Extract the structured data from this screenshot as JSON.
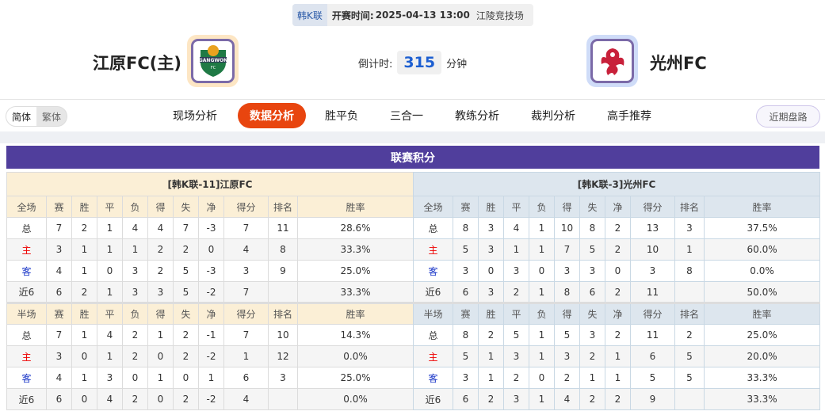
{
  "match": {
    "league": "韩K联",
    "time_label": "开赛时间:",
    "time": "2025-04-13 13:00",
    "venue": "江陵竞技场"
  },
  "home": {
    "name": "江原FC(主)",
    "logo_text": "GANGWON FC"
  },
  "away": {
    "name": "光州FC"
  },
  "countdown": {
    "label": "倒计时:",
    "value": "315",
    "unit": "分钟"
  },
  "lang": {
    "simplified": "简体",
    "traditional": "繁体"
  },
  "nav": [
    "现场分析",
    "数据分析",
    "胜平负",
    "三合一",
    "教练分析",
    "裁判分析",
    "高手推荐"
  ],
  "nav_active": 1,
  "recent_button": "近期盘路",
  "section_title": "联赛积分",
  "colors": {
    "accent": "#e8450f",
    "header": "#503e9c",
    "home_label": "#e00000",
    "away_label": "#1a36c8"
  },
  "columns_full": [
    "全场",
    "赛",
    "胜",
    "平",
    "负",
    "得",
    "失",
    "净",
    "得分",
    "排名",
    "胜率"
  ],
  "columns_half": [
    "半场",
    "赛",
    "胜",
    "平",
    "负",
    "得",
    "失",
    "净",
    "得分",
    "排名",
    "胜率"
  ],
  "tables": [
    {
      "title": "[韩K联-11]江原FC",
      "full": [
        [
          "总",
          "7",
          "2",
          "1",
          "4",
          "4",
          "7",
          "-3",
          "7",
          "11",
          "28.6%"
        ],
        [
          "主",
          "3",
          "1",
          "1",
          "1",
          "2",
          "2",
          "0",
          "4",
          "8",
          "33.3%"
        ],
        [
          "客",
          "4",
          "1",
          "0",
          "3",
          "2",
          "5",
          "-3",
          "3",
          "9",
          "25.0%"
        ],
        [
          "近6",
          "6",
          "2",
          "1",
          "3",
          "3",
          "5",
          "-2",
          "7",
          "",
          "33.3%"
        ]
      ],
      "half": [
        [
          "总",
          "7",
          "1",
          "4",
          "2",
          "1",
          "2",
          "-1",
          "7",
          "10",
          "14.3%"
        ],
        [
          "主",
          "3",
          "0",
          "1",
          "2",
          "0",
          "2",
          "-2",
          "1",
          "12",
          "0.0%"
        ],
        [
          "客",
          "4",
          "1",
          "3",
          "0",
          "1",
          "0",
          "1",
          "6",
          "3",
          "25.0%"
        ],
        [
          "近6",
          "6",
          "0",
          "4",
          "2",
          "0",
          "2",
          "-2",
          "4",
          "",
          "0.0%"
        ]
      ]
    },
    {
      "title": "[韩K联-3]光州FC",
      "full": [
        [
          "总",
          "8",
          "3",
          "4",
          "1",
          "10",
          "8",
          "2",
          "13",
          "3",
          "37.5%"
        ],
        [
          "主",
          "5",
          "3",
          "1",
          "1",
          "7",
          "5",
          "2",
          "10",
          "1",
          "60.0%"
        ],
        [
          "客",
          "3",
          "0",
          "3",
          "0",
          "3",
          "3",
          "0",
          "3",
          "8",
          "0.0%"
        ],
        [
          "近6",
          "6",
          "3",
          "2",
          "1",
          "8",
          "6",
          "2",
          "11",
          "",
          "50.0%"
        ]
      ],
      "half": [
        [
          "总",
          "8",
          "2",
          "5",
          "1",
          "5",
          "3",
          "2",
          "11",
          "2",
          "25.0%"
        ],
        [
          "主",
          "5",
          "1",
          "3",
          "1",
          "3",
          "2",
          "1",
          "6",
          "5",
          "20.0%"
        ],
        [
          "客",
          "3",
          "1",
          "2",
          "0",
          "2",
          "1",
          "1",
          "5",
          "5",
          "33.3%"
        ],
        [
          "近6",
          "6",
          "2",
          "3",
          "1",
          "4",
          "2",
          "2",
          "9",
          "",
          "33.3%"
        ]
      ]
    }
  ]
}
